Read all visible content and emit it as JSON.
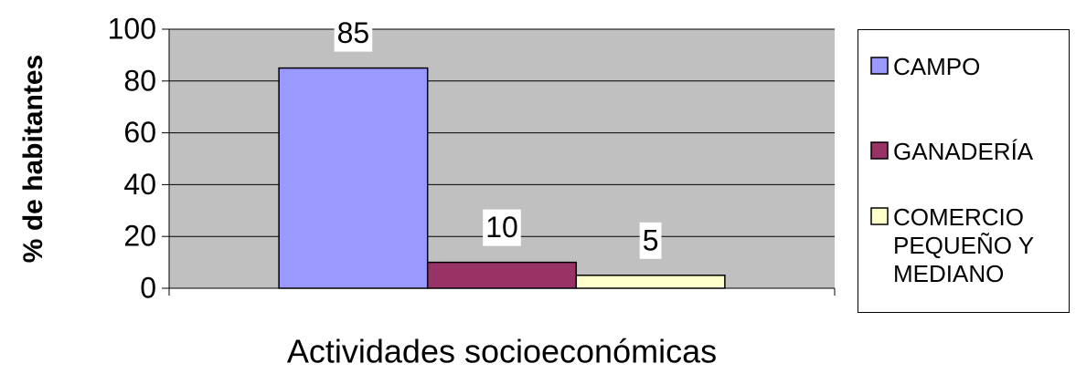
{
  "chart_data": {
    "type": "bar",
    "ylabel": "% de habitantes",
    "xlabel": "Actividades socioeconómicas",
    "categories": [
      null
    ],
    "series": [
      {
        "name": "CAMPO",
        "color": "#9999ff",
        "values": [
          85
        ]
      },
      {
        "name": "GANADERÍA",
        "color": "#993366",
        "values": [
          10
        ]
      },
      {
        "name": "COMERCIO PEQUEÑO Y MEDIANO",
        "color": "#ffffcc",
        "values": [
          5
        ]
      }
    ],
    "ylim": [
      0,
      100
    ],
    "yticks": [
      0,
      20,
      40,
      60,
      80,
      100
    ],
    "grid": true,
    "legend": "right"
  }
}
